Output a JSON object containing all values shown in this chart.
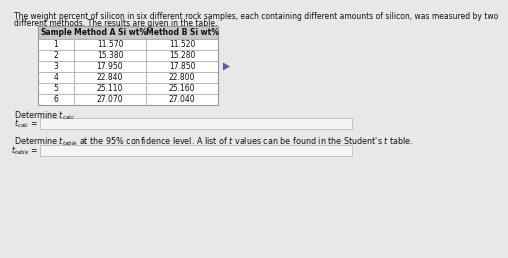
{
  "title_line1": "The weight percent of silicon in six different rock samples, each containing different amounts of silicon, was measured by two",
  "title_line2": "different methods. The results are given in the table.",
  "col_headers": [
    "Sample",
    "Method A Si wt%",
    "Method B Si wt%"
  ],
  "rows": [
    [
      "1",
      "11.570",
      "11.520"
    ],
    [
      "2",
      "15.380",
      "15.280"
    ],
    [
      "3",
      "17.950",
      "17.850"
    ],
    [
      "4",
      "22.840",
      "22.800"
    ],
    [
      "5",
      "25.110",
      "25.160"
    ],
    [
      "6",
      "27.070",
      "27.040"
    ]
  ],
  "label_calc": "Determine $t_{calc}$",
  "label_calc_eq": "$t_{calc}$ =",
  "label_table_line1": "Determine $t_{table}$ at the 95% confidence level. A list of $t$ values can be found in the Student's $t$ table.",
  "label_table_eq": "$t_{table}$ =",
  "bg_color": "#e8e8e8",
  "table_header_bg": "#c8c8c8",
  "table_row_bg": "#ffffff",
  "table_border_color": "#999999",
  "input_box_color": "#f5f5f5",
  "input_box_border": "#bbbbbb",
  "text_color": "#111111",
  "link_color": "#3333cc",
  "font_size_title": 5.5,
  "font_size_table": 5.8,
  "font_size_label": 5.8
}
